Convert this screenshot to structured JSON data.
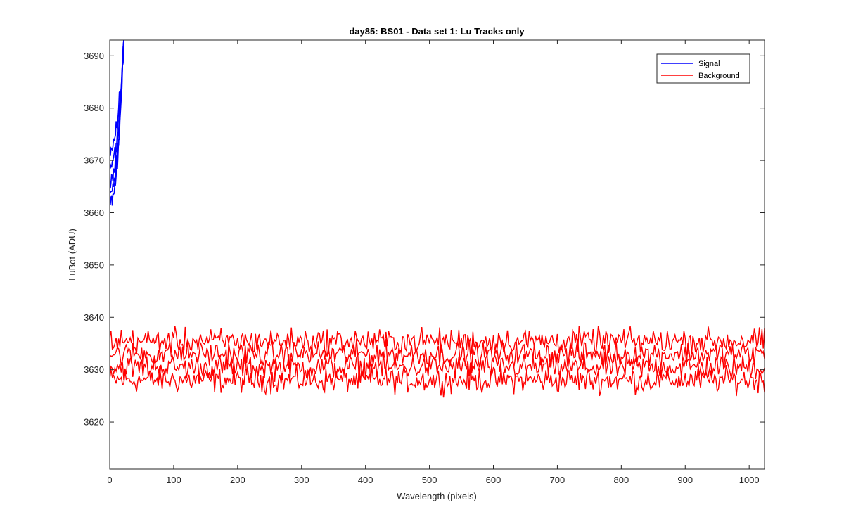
{
  "chart_data": {
    "type": "line",
    "title": "day85: BS01 - Data set 1: Lu Tracks only",
    "xlabel": "Wavelength (pixels)",
    "ylabel": "LuBot (ADU)",
    "xlim": [
      0,
      1024
    ],
    "ylim": [
      3611,
      3693
    ],
    "xticks": [
      0,
      100,
      200,
      300,
      400,
      500,
      600,
      700,
      800,
      900,
      1000
    ],
    "yticks": [
      3620,
      3630,
      3640,
      3650,
      3660,
      3670,
      3680,
      3690
    ],
    "grid": false,
    "legend_position": "top-right",
    "series": [
      {
        "name": "Signal",
        "color": "#0000ff",
        "kind": "multi-line",
        "x_range": [
          0,
          22
        ],
        "start_values": [
          3661.5,
          3664.0,
          3666.5,
          3669.0,
          3672.0
        ],
        "end_value": 3693,
        "noise_amplitude": 2.5
      },
      {
        "name": "Background",
        "color": "#ff0000",
        "kind": "multi-line",
        "x_range": [
          0,
          1024
        ],
        "track_means": [
          3628.0,
          3630.5,
          3633.0,
          3635.5
        ],
        "noise_amplitude": 3.5,
        "observed_min": 3621,
        "observed_max": 3643
      }
    ]
  }
}
